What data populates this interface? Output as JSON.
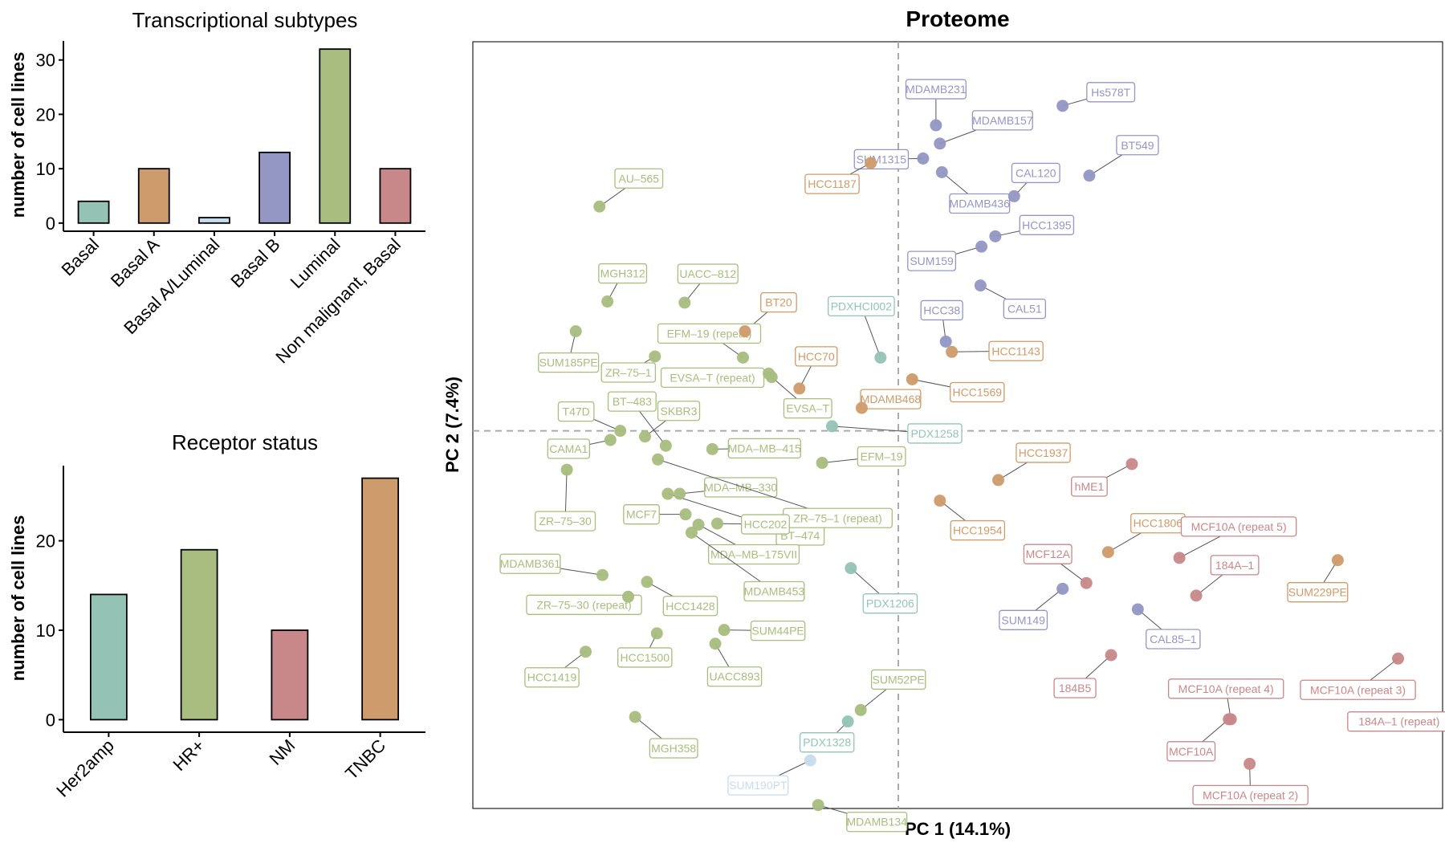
{
  "colors": {
    "Basal": "#94c3b5",
    "Basal A": "#cd9b6c",
    "Basal A/Luminal": "#c6dcec",
    "Basal B": "#9496c4",
    "Luminal": "#a8bd7f",
    "Non malignant, Basal": "#c88889"
  },
  "chart_data": [
    {
      "type": "bar",
      "title": "Transcriptional subtypes",
      "ylabel": "number of cell lines",
      "xlabel": "",
      "categories": [
        "Basal",
        "Basal A",
        "Basal A/Luminal",
        "Basal B",
        "Luminal",
        "Non malignant, Basal"
      ],
      "values": [
        4,
        10,
        1,
        13,
        32,
        10
      ],
      "bar_colors": [
        "#94c3b5",
        "#cd9b6c",
        "#c6dcec",
        "#9496c4",
        "#a8bd7f",
        "#c88889"
      ],
      "yticks": [
        0,
        10,
        20,
        30
      ],
      "ylim": [
        -1.5,
        33.5
      ]
    },
    {
      "type": "bar",
      "title": "Receptor status",
      "ylabel": "number of cell lines",
      "xlabel": "",
      "categories": [
        "Her2amp",
        "HR+",
        "NM",
        "TNBC"
      ],
      "values": [
        14,
        19,
        10,
        27
      ],
      "bar_colors": [
        "#94c3b5",
        "#a8bd7f",
        "#c88889",
        "#cd9b6c"
      ],
      "yticks": [
        0,
        10,
        20
      ],
      "ylim": [
        -1.4,
        28.4
      ]
    },
    {
      "type": "scatter",
      "title": "Proteome",
      "xlabel": "PC 1 (14.1%)",
      "ylabel": "PC 2 (7.4%)",
      "xlim": [
        -43,
        55
      ],
      "ylim": [
        -33,
        34
      ],
      "grid": false,
      "reference_lines": {
        "x": 0,
        "y": 0
      },
      "points": [
        {
          "name": "MDAMB231",
          "group": "Basal B",
          "x": 3.8,
          "y": 26.7
        },
        {
          "name": "SUM1315",
          "group": "Basal B",
          "x": 2.5,
          "y": 23.8
        },
        {
          "name": "MDAMB157",
          "group": "Basal B",
          "x": 4.2,
          "y": 25.1
        },
        {
          "name": "MDAMB436",
          "group": "Basal B",
          "x": 4.4,
          "y": 22.6
        },
        {
          "name": "Hs578T",
          "group": "Basal B",
          "x": 16.6,
          "y": 28.4
        },
        {
          "name": "BT549",
          "group": "Basal B",
          "x": 19.3,
          "y": 22.3
        },
        {
          "name": "CAL120",
          "group": "Basal B",
          "x": 11.7,
          "y": 20.5
        },
        {
          "name": "HCC1395",
          "group": "Basal B",
          "x": 9.8,
          "y": 17.0
        },
        {
          "name": "SUM159",
          "group": "Basal B",
          "x": 8.4,
          "y": 16.1
        },
        {
          "name": "CAL51",
          "group": "Basal B",
          "x": 8.3,
          "y": 12.7
        },
        {
          "name": "HCC38",
          "group": "Basal B",
          "x": 4.8,
          "y": 7.8
        },
        {
          "name": "SUM149",
          "group": "Basal B",
          "x": 16.6,
          "y": -13.8
        },
        {
          "name": "CAL85–1",
          "group": "Basal B",
          "x": 24.2,
          "y": -15.6
        },
        {
          "name": "HCC1187",
          "group": "Basal A",
          "x": -2.8,
          "y": 23.4
        },
        {
          "name": "BT20",
          "group": "Basal A",
          "x": -15.5,
          "y": 8.7
        },
        {
          "name": "HCC70",
          "group": "Basal A",
          "x": -10.0,
          "y": 3.7
        },
        {
          "name": "MDAMB468",
          "group": "Basal A",
          "x": -3.7,
          "y": 2.0
        },
        {
          "name": "HCC1143",
          "group": "Basal A",
          "x": 5.4,
          "y": 6.9
        },
        {
          "name": "HCC1569",
          "group": "Basal A",
          "x": 1.4,
          "y": 4.5
        },
        {
          "name": "HCC1937",
          "group": "Basal A",
          "x": 10.1,
          "y": -4.3
        },
        {
          "name": "HCC1954",
          "group": "Basal A",
          "x": 4.2,
          "y": -6.1
        },
        {
          "name": "HCC1806",
          "group": "Basal A",
          "x": 21.2,
          "y": -10.6
        },
        {
          "name": "SUM229PE",
          "group": "Basal A",
          "x": 44.4,
          "y": -11.3
        },
        {
          "name": "PDXHCI002",
          "group": "Basal",
          "x": -1.8,
          "y": 6.4
        },
        {
          "name": "PDX1258",
          "group": "Basal",
          "x": -6.7,
          "y": 0.4
        },
        {
          "name": "PDX1206",
          "group": "Basal",
          "x": -4.8,
          "y": -12.0
        },
        {
          "name": "PDX1328",
          "group": "Basal",
          "x": -5.1,
          "y": -25.4
        },
        {
          "name": "SUM190PT",
          "group": "Basal A/Luminal",
          "x": -8.9,
          "y": -28.8
        },
        {
          "name": "hME1",
          "group": "Non malignant, Basal",
          "x": 23.6,
          "y": -2.9
        },
        {
          "name": "MCF10A (repeat 5)",
          "group": "Non malignant, Basal",
          "x": 28.4,
          "y": -11.1
        },
        {
          "name": "MCF12A",
          "group": "Non malignant, Basal",
          "x": 19.0,
          "y": -13.3
        },
        {
          "name": "184A–1",
          "group": "Non malignant, Basal",
          "x": 30.1,
          "y": -14.4
        },
        {
          "name": "184B5",
          "group": "Non malignant, Basal",
          "x": 21.5,
          "y": -19.6
        },
        {
          "name": "MCF10A (repeat 3)",
          "group": "Non malignant, Basal",
          "x": 50.5,
          "y": -19.9
        },
        {
          "name": "MCF10A (repeat 4)",
          "group": "Non malignant, Basal",
          "x": 33.6,
          "y": -25.2
        },
        {
          "name": "MCF10A",
          "group": "Non malignant, Basal",
          "x": 33.4,
          "y": -25.2
        },
        {
          "name": "184A–1 (repeat)",
          "group": "Non malignant, Basal",
          "x": 57.5,
          "y": -25.4
        },
        {
          "name": "MCF10A (repeat 2)",
          "group": "Non malignant, Basal",
          "x": 35.5,
          "y": -29.1
        },
        {
          "name": "AU–565",
          "group": "Luminal",
          "x": -30.2,
          "y": 19.6
        },
        {
          "name": "MGH312",
          "group": "Luminal",
          "x": -29.4,
          "y": 11.3
        },
        {
          "name": "UACC–812",
          "group": "Luminal",
          "x": -21.6,
          "y": 11.2
        },
        {
          "name": "EFM–19 (repeat)",
          "group": "Luminal",
          "x": -15.7,
          "y": 6.4
        },
        {
          "name": "SUM185PE",
          "group": "Luminal",
          "x": -32.6,
          "y": 8.7
        },
        {
          "name": "ZR–75–1",
          "group": "Luminal",
          "x": -24.6,
          "y": 6.5
        },
        {
          "name": "EVSA–T (repeat)",
          "group": "Luminal",
          "x": -13.1,
          "y": 5.0
        },
        {
          "name": "EVSA–T",
          "group": "Luminal",
          "x": -12.8,
          "y": 4.7
        },
        {
          "name": "T47D",
          "group": "Luminal",
          "x": -28.1,
          "y": 0.0
        },
        {
          "name": "SKBR3",
          "group": "Luminal",
          "x": -25.6,
          "y": -0.5
        },
        {
          "name": "CAMA1",
          "group": "Luminal",
          "x": -29.1,
          "y": -0.8
        },
        {
          "name": "MDA–MB–415",
          "group": "Luminal",
          "x": -18.8,
          "y": -1.6
        },
        {
          "name": "EFM–19",
          "group": "Luminal",
          "x": -7.7,
          "y": -2.8
        },
        {
          "name": "ZR–75–30",
          "group": "Luminal",
          "x": -33.5,
          "y": -3.4
        },
        {
          "name": "BT–483",
          "group": "Luminal",
          "x": -23.5,
          "y": -1.3
        },
        {
          "name": "MDA–MB–330",
          "group": "Luminal",
          "x": -22.1,
          "y": -5.5
        },
        {
          "name": "BT–474",
          "group": "Luminal",
          "x": -23.3,
          "y": -5.5
        },
        {
          "name": "ZR–75–1 (repeat)",
          "group": "Luminal",
          "x": -24.3,
          "y": -2.5
        },
        {
          "name": "MCF7",
          "group": "Luminal",
          "x": -21.5,
          "y": -7.3
        },
        {
          "name": "HCC202",
          "group": "Luminal",
          "x": -18.3,
          "y": -8.1
        },
        {
          "name": "MDA–MB–175VII",
          "group": "Luminal",
          "x": -20.2,
          "y": -8.2
        },
        {
          "name": "MDAMB453",
          "group": "Luminal",
          "x": -20.9,
          "y": -8.9
        },
        {
          "name": "MDAMB361",
          "group": "Luminal",
          "x": -29.9,
          "y": -12.6
        },
        {
          "name": "HCC1428",
          "group": "Luminal",
          "x": -25.4,
          "y": -13.2
        },
        {
          "name": "ZR–75–30 (repeat)",
          "group": "Luminal",
          "x": -27.3,
          "y": -14.5
        },
        {
          "name": "SUM44PE",
          "group": "Luminal",
          "x": -17.6,
          "y": -17.4
        },
        {
          "name": "HCC1500",
          "group": "Luminal",
          "x": -24.4,
          "y": -17.7
        },
        {
          "name": "UACC893",
          "group": "Luminal",
          "x": -18.5,
          "y": -18.6
        },
        {
          "name": "HCC1419",
          "group": "Luminal",
          "x": -31.6,
          "y": -19.3
        },
        {
          "name": "SUM52PE",
          "group": "Luminal",
          "x": -3.8,
          "y": -24.4
        },
        {
          "name": "MGH358",
          "group": "Luminal",
          "x": -26.6,
          "y": -25.0
        },
        {
          "name": "MDAMB134",
          "group": "Luminal",
          "x": -8.1,
          "y": -32.7
        }
      ]
    }
  ]
}
